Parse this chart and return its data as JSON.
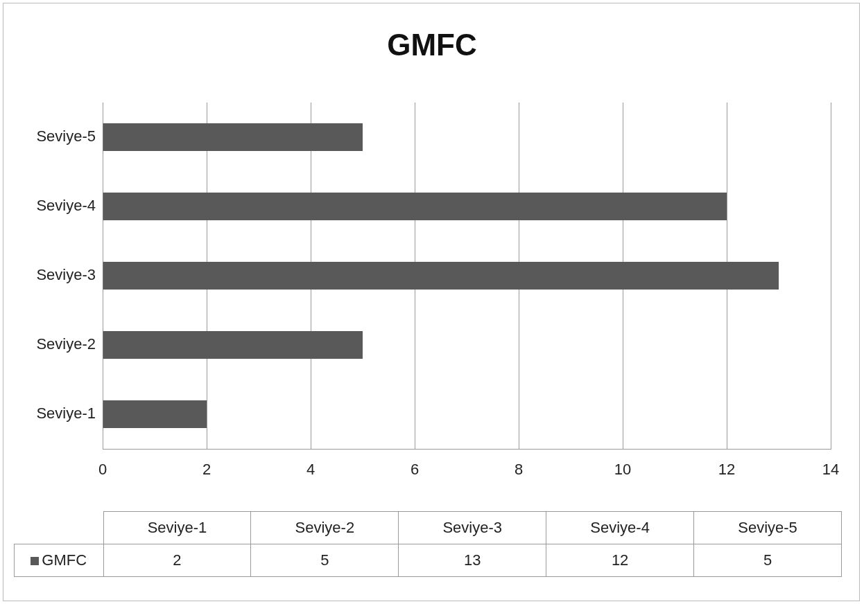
{
  "chart_data": {
    "type": "bar",
    "title": "GMFC",
    "orientation": "horizontal",
    "categories": [
      "Seviye-5",
      "Seviye-4",
      "Seviye-3",
      "Seviye-2",
      "Seviye-1"
    ],
    "series": [
      {
        "name": "GMFC",
        "color": "#595959",
        "values": [
          5,
          12,
          13,
          5,
          2
        ]
      }
    ],
    "xlim": [
      0,
      14
    ],
    "xticks": [
      0,
      2,
      4,
      6,
      8,
      10,
      12,
      14
    ],
    "grid": "x",
    "annotations": [
      "2",
      "5",
      "13",
      "12",
      "5"
    ]
  }
}
